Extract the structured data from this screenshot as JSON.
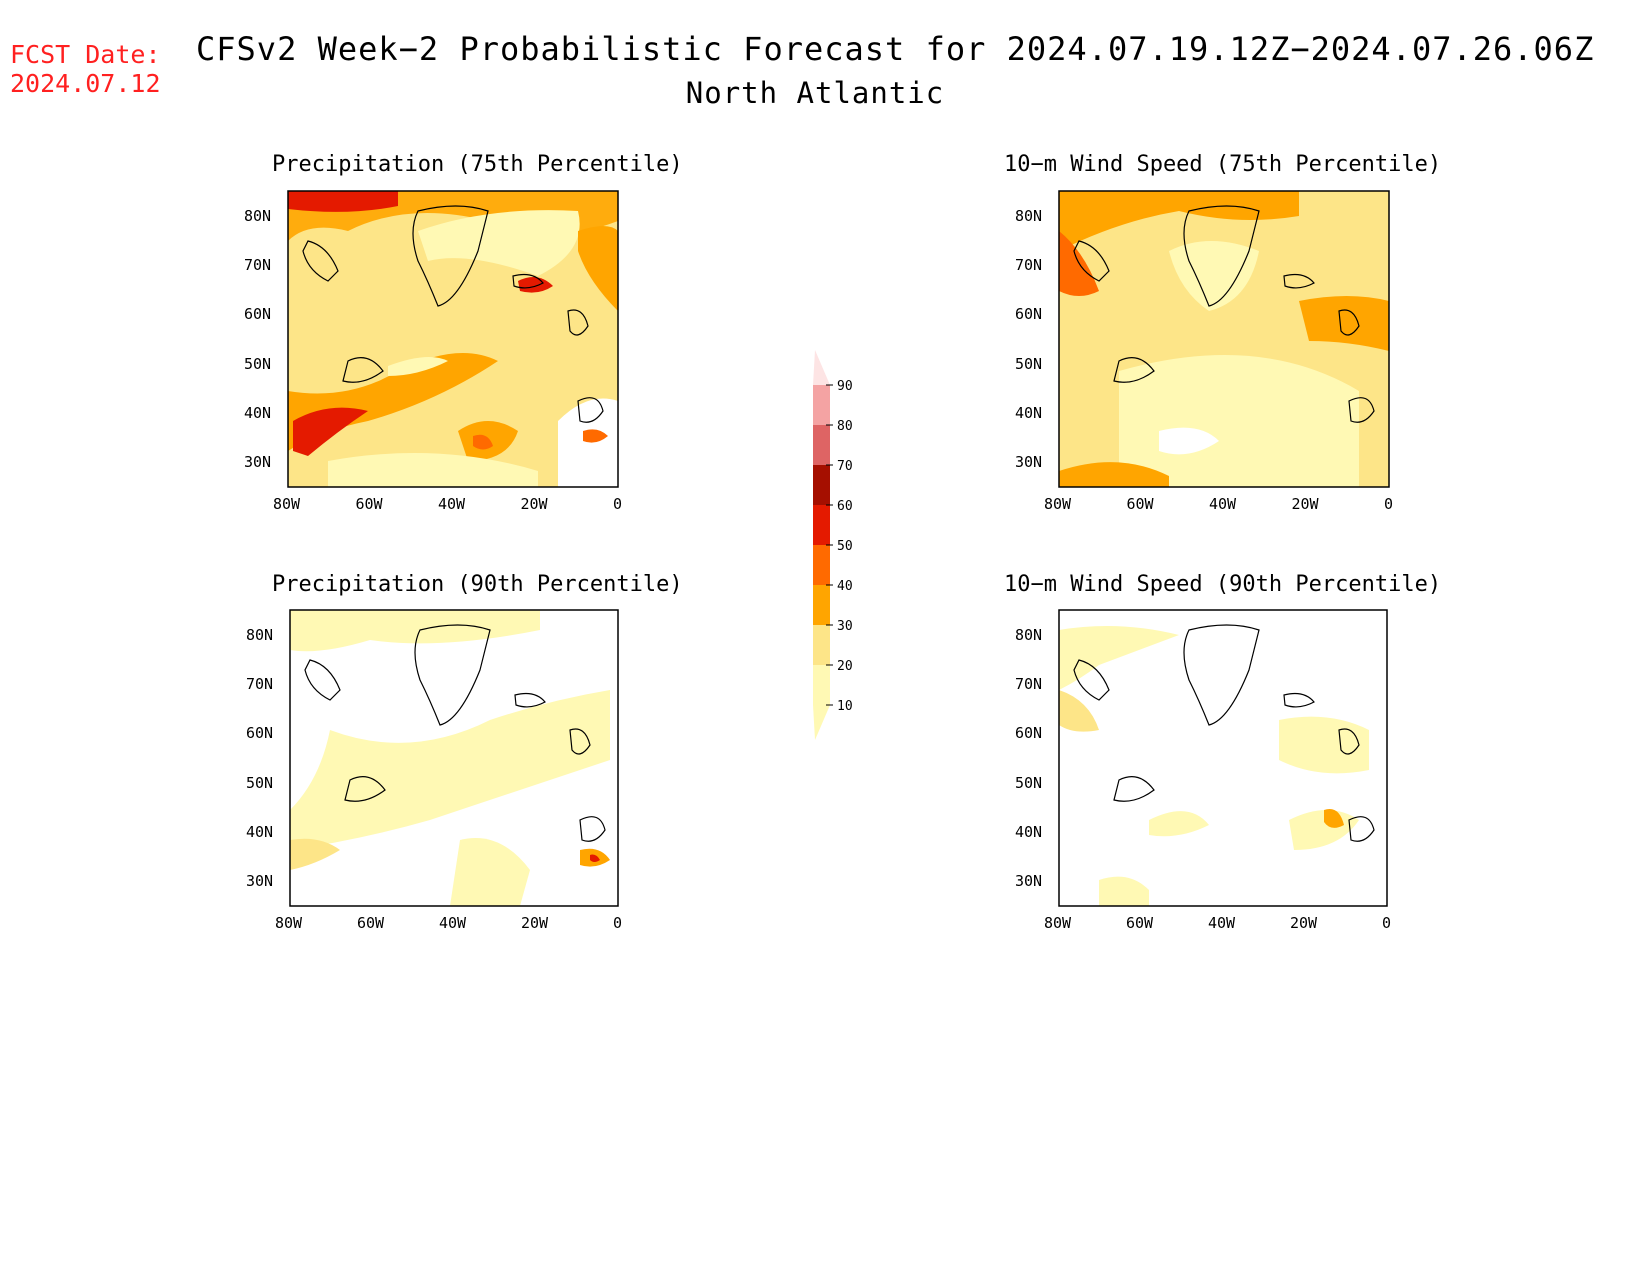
{
  "fcst": {
    "line1": "FCST Date:",
    "line2": "2024.07.12"
  },
  "title": {
    "main": "CFSv2 Week−2 Probabilistic Forecast for 2024.07.19.12Z−2024.07.26.06Z",
    "region": "North Atlantic"
  },
  "panels": [
    {
      "title": "Precipitation (75th Percentile)"
    },
    {
      "title": "10−m Wind Speed (75th Percentile)"
    },
    {
      "title": "Precipitation (90th Percentile)"
    },
    {
      "title": "10−m Wind Speed (90th Percentile)"
    }
  ],
  "axes": {
    "lat_ticks": [
      "80N",
      "70N",
      "60N",
      "50N",
      "40N",
      "30N"
    ],
    "lon_ticks": [
      "80W",
      "60W",
      "40W",
      "20W",
      "0"
    ],
    "lat_range": [
      25,
      85
    ],
    "lon_range": [
      -80,
      0
    ]
  },
  "colorbar": {
    "levels": [
      "10",
      "20",
      "30",
      "40",
      "50",
      "60",
      "70",
      "80",
      "90"
    ],
    "colors": [
      "#fff9b4",
      "#fde588",
      "#ffa500",
      "#ff6a00",
      "#e41a00",
      "#a50f00",
      "#de6464",
      "#f4a3a3",
      "#fde4e4"
    ]
  },
  "colors": {
    "fcst_text": "#ff2020"
  }
}
